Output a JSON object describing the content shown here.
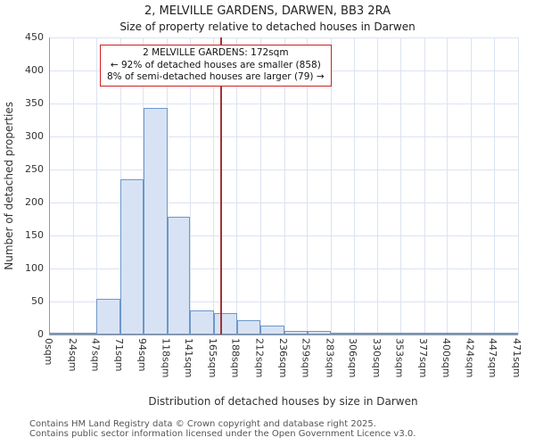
{
  "title": {
    "line1": "2, MELVILLE GARDENS, DARWEN, BB3 2RA",
    "line2": "Size of property relative to detached houses in Darwen"
  },
  "annotation": {
    "line1": "2 MELVILLE GARDENS: 172sqm",
    "line2": "← 92% of detached houses are smaller (858)",
    "line3": "8% of semi-detached houses are larger (79) →"
  },
  "footer": {
    "line1": "Contains HM Land Registry data © Crown copyright and database right 2025.",
    "line2": "Contains public sector information licensed under the Open Government Licence v3.0."
  },
  "chart_data": {
    "type": "bar",
    "title": "2, MELVILLE GARDENS, DARWEN, BB3 2RA — Size of property relative to detached houses in Darwen",
    "xlabel": "Distribution of detached houses by size in Darwen",
    "ylabel": "Number of detached properties",
    "x_tick_labels": [
      "0sqm",
      "24sqm",
      "47sqm",
      "71sqm",
      "94sqm",
      "118sqm",
      "141sqm",
      "165sqm",
      "188sqm",
      "212sqm",
      "236sqm",
      "259sqm",
      "283sqm",
      "306sqm",
      "330sqm",
      "353sqm",
      "377sqm",
      "400sqm",
      "424sqm",
      "447sqm",
      "471sqm"
    ],
    "bin_edges_sqm": [
      0,
      24,
      47,
      71,
      94,
      118,
      141,
      165,
      188,
      212,
      236,
      259,
      283,
      306,
      330,
      353,
      377,
      400,
      424,
      447,
      471
    ],
    "values": [
      2,
      3,
      54,
      235,
      343,
      178,
      37,
      33,
      21,
      13,
      5,
      6,
      3,
      2,
      1,
      1,
      1,
      1,
      1,
      2
    ],
    "ylim": [
      0,
      450
    ],
    "y_ticks": [
      0,
      50,
      100,
      150,
      200,
      250,
      300,
      350,
      400,
      450
    ],
    "marker_value_sqm": 172,
    "grid": true,
    "legend": "none",
    "colors": {
      "bar_fill": "#d7e3f4",
      "bar_border": "#6d97ca",
      "marker_line": "#a33333",
      "annotation_border": "#cc2222",
      "grid": "#dbe3f1"
    }
  }
}
